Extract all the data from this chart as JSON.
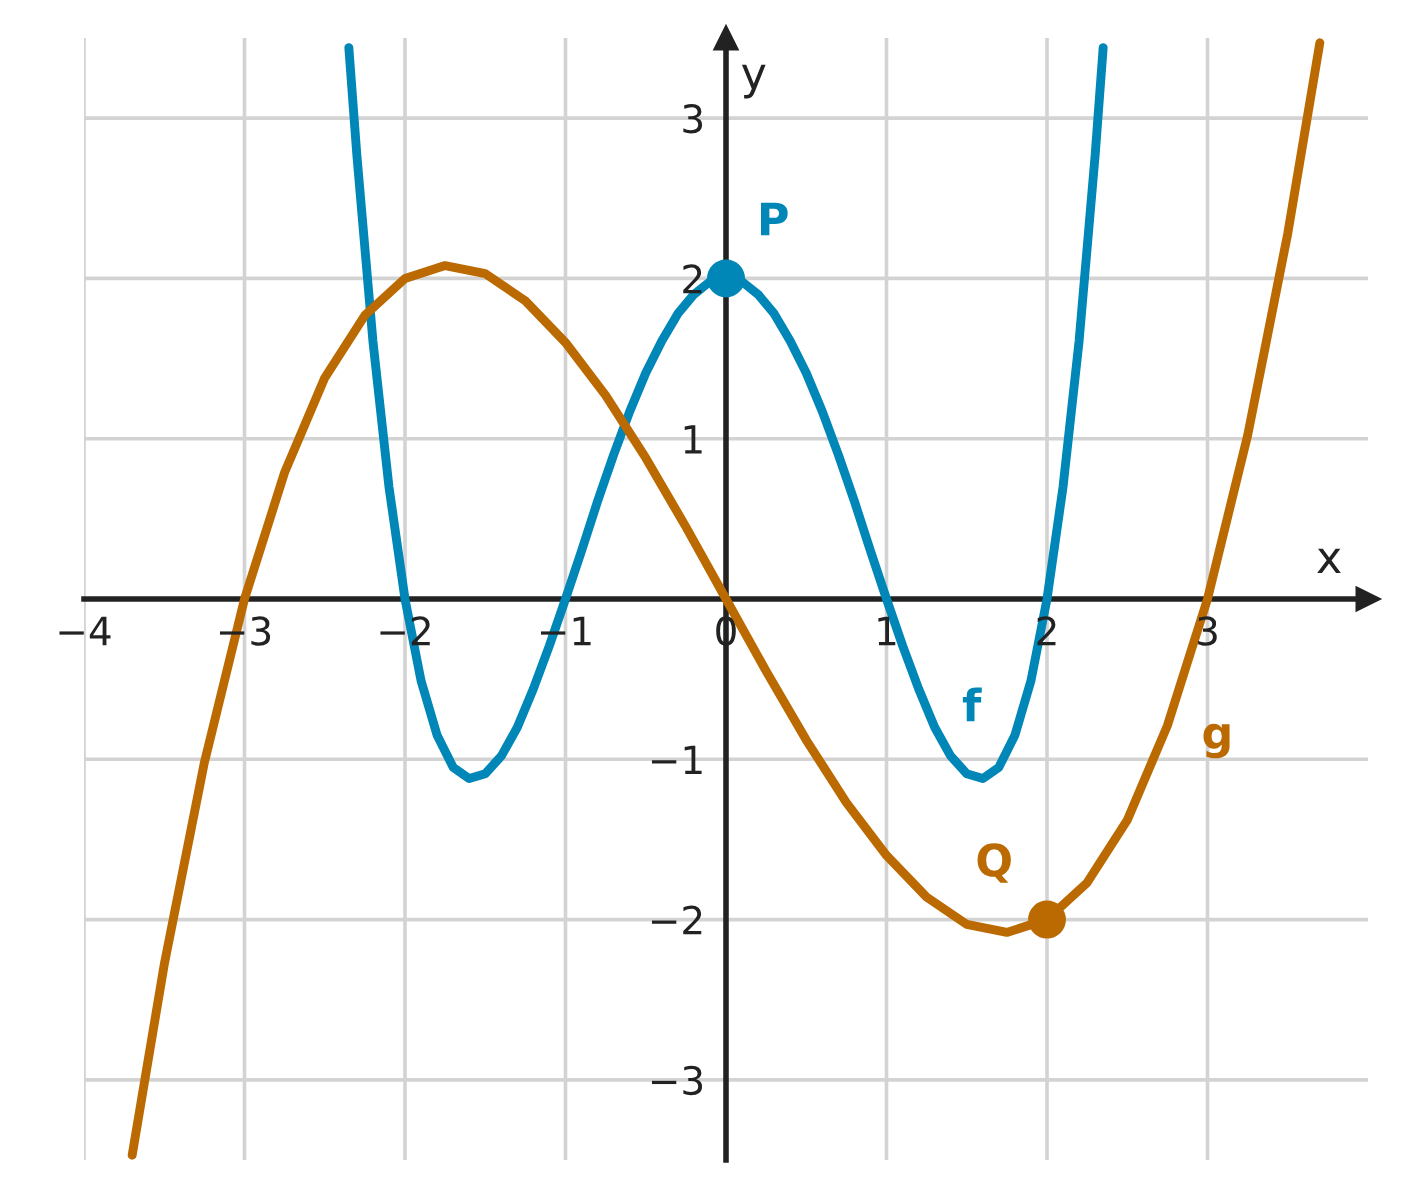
{
  "chart_data": {
    "type": "line",
    "xlabel": "x",
    "ylabel": "y",
    "xlim": [
      -4,
      4
    ],
    "ylim": [
      -3.5,
      3.5
    ],
    "xticks": [
      {
        "value": -4,
        "label": "−4"
      },
      {
        "value": -3,
        "label": "−3"
      },
      {
        "value": -2,
        "label": "−2"
      },
      {
        "value": -1,
        "label": "−1"
      },
      0,
      1,
      2,
      3
    ],
    "yticks": [
      {
        "value": -3,
        "label": "−3"
      },
      {
        "value": -2,
        "label": "−2"
      },
      {
        "value": -1,
        "label": "−1"
      },
      {
        "value": 0,
        "label": null
      },
      1,
      2,
      3
    ],
    "grid": true,
    "legend": false,
    "line_style": "solid",
    "series": [
      {
        "type": "line",
        "color": "#0086b7",
        "marker": "none",
        "x": [
          -2.35,
          -2.3,
          -2.2,
          -2.1,
          -2.0,
          -1.9,
          -1.8,
          -1.7,
          -1.6,
          -1.5,
          -1.4,
          -1.3,
          -1.2,
          -1.1,
          -1.0,
          -0.9,
          -0.8,
          -0.7,
          -0.6,
          -0.5,
          -0.4,
          -0.3,
          -0.2,
          -0.1,
          0,
          0.1,
          0.2,
          0.3,
          0.4,
          0.5,
          0.6,
          0.7,
          0.8,
          0.9,
          1.0,
          1.1,
          1.2,
          1.3,
          1.4,
          1.5,
          1.6,
          1.7,
          1.8,
          1.9,
          2.0,
          2.1,
          2.2,
          2.3,
          2.35
        ],
        "values": [
          3.44,
          2.77,
          1.61,
          0.7,
          0,
          -0.51,
          -0.85,
          -1.05,
          -1.12,
          -1.09,
          -0.98,
          -0.8,
          -0.56,
          -0.29,
          0,
          0.3,
          0.61,
          0.9,
          1.17,
          1.41,
          1.61,
          1.78,
          1.9,
          1.98,
          2,
          1.98,
          1.9,
          1.78,
          1.61,
          1.41,
          1.17,
          0.9,
          0.61,
          0.3,
          0,
          -0.29,
          -0.56,
          -0.8,
          -0.98,
          -1.09,
          -1.12,
          -1.05,
          -0.85,
          -0.51,
          0,
          0.7,
          1.61,
          2.77,
          3.44
        ]
      },
      {
        "type": "line",
        "color": "#ba6a00",
        "marker": "none",
        "x": [
          -3.7,
          -3.5,
          -3.25,
          -3.0,
          -2.75,
          -2.5,
          -2.25,
          -2.0,
          -1.75,
          -1.5,
          -1.25,
          -1.0,
          -0.75,
          -0.5,
          -0.25,
          0,
          0.25,
          0.5,
          0.75,
          1.0,
          1.25,
          1.5,
          1.75,
          2.0,
          2.25,
          2.5,
          2.75,
          3.0,
          3.25,
          3.5,
          3.7
        ],
        "values": [
          -3.47,
          -2.28,
          -1.02,
          0,
          0.79,
          1.38,
          1.77,
          2.0,
          2.08,
          2.03,
          1.86,
          1.6,
          1.27,
          0.88,
          0.45,
          0,
          -0.45,
          -0.88,
          -1.27,
          -1.6,
          -1.86,
          -2.03,
          -2.08,
          -2.0,
          -1.77,
          -1.38,
          -0.79,
          0,
          1.02,
          2.28,
          3.47
        ]
      },
      {
        "type": "scatter",
        "color": "#0086b7",
        "marker": "circle",
        "x": [
          0
        ],
        "values": [
          2
        ]
      },
      {
        "type": "scatter",
        "color": "#ba6a00",
        "marker": "circle",
        "x": [
          2
        ],
        "values": [
          -2
        ]
      }
    ],
    "annotations": [
      {
        "text": "P",
        "x": 0,
        "y": 2
      },
      {
        "text": "Q",
        "x": 2,
        "y": -2
      },
      {
        "text": "f",
        "x": 1.6,
        "y": -1.12
      },
      {
        "text": "g",
        "x": 2.75,
        "y": -0.79
      }
    ]
  }
}
